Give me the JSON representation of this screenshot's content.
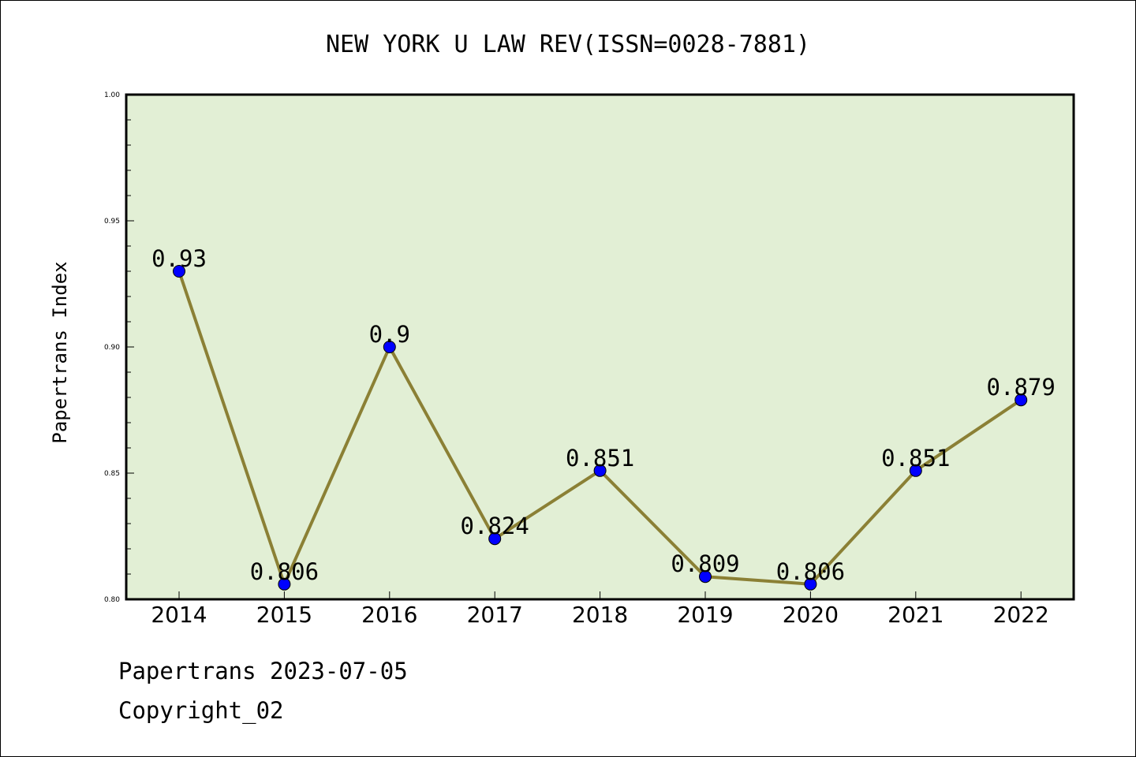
{
  "chart_data": {
    "type": "line",
    "title": "NEW YORK U LAW REV(ISSN=0028-7881)",
    "ylabel": "Papertrans Index",
    "xlabel": "",
    "categories": [
      "2014",
      "2015",
      "2016",
      "2017",
      "2018",
      "2019",
      "2020",
      "2021",
      "2022"
    ],
    "values": [
      0.93,
      0.806,
      0.9,
      0.824,
      0.851,
      0.809,
      0.806,
      0.851,
      0.879
    ],
    "data_labels": [
      "0.93",
      "0.806",
      "0.9",
      "0.824",
      "0.851",
      "0.809",
      "0.806",
      "0.851",
      "0.879"
    ],
    "ylim": [
      0.8,
      1.0
    ],
    "yticks": [
      0.8,
      0.85,
      0.9,
      0.95,
      1.0
    ],
    "ytick_labels": [
      "0.80",
      "0.85",
      "0.90",
      "0.95",
      "1.00"
    ],
    "grid": false,
    "colors": {
      "plot_background": "#e2efd5",
      "line": "#8b8035",
      "marker": "#0000ff"
    }
  },
  "footer": {
    "line1": "Papertrans 2023-07-05",
    "line2": "Copyright_02"
  }
}
